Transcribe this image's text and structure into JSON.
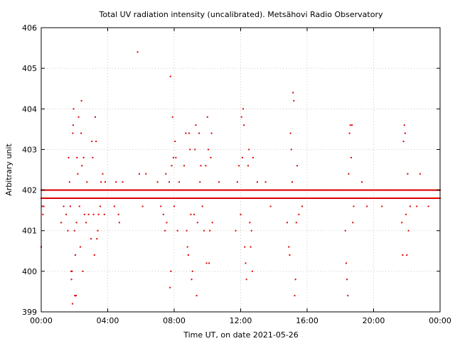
{
  "chart_data": {
    "type": "scatter",
    "title": "Total UV radiation intensity (uncalibrated). Metsähovi Radio Observatory",
    "xlabel": "Time UT, on date 2021-05-26",
    "ylabel": "Arbitrary unit",
    "x_unit": "hours UT",
    "xlim": [
      0,
      24
    ],
    "ylim": [
      399,
      406
    ],
    "grid": true,
    "point_color": "#e00000",
    "x_ticks": [
      {
        "value": 0,
        "label": "00:00"
      },
      {
        "value": 4,
        "label": "04:00"
      },
      {
        "value": 8,
        "label": "08:00"
      },
      {
        "value": 12,
        "label": "12:00"
      },
      {
        "value": 16,
        "label": "16:00"
      },
      {
        "value": 20,
        "label": "20:00"
      },
      {
        "value": 24,
        "label": "00:00"
      }
    ],
    "y_ticks": [
      {
        "value": 399,
        "label": "399"
      },
      {
        "value": 400,
        "label": "400"
      },
      {
        "value": 401,
        "label": "401"
      },
      {
        "value": 402,
        "label": "402"
      },
      {
        "value": 403,
        "label": "403"
      },
      {
        "value": 404,
        "label": "404"
      },
      {
        "value": 405,
        "label": "405"
      },
      {
        "value": 406,
        "label": "406"
      }
    ],
    "baseline_bands": [
      {
        "from": 0.0,
        "to": 24.0,
        "value": 402.0
      },
      {
        "from": 0.0,
        "to": 24.0,
        "value": 401.8
      }
    ],
    "points": [
      [
        0.0,
        400.6
      ],
      [
        0.05,
        401.6
      ],
      [
        0.1,
        401.4
      ],
      [
        0.15,
        401.6
      ],
      [
        1.2,
        401.2
      ],
      [
        1.35,
        401.6
      ],
      [
        1.5,
        401.4
      ],
      [
        1.6,
        401.0
      ],
      [
        1.65,
        402.8
      ],
      [
        1.7,
        402.2
      ],
      [
        1.75,
        401.6
      ],
      [
        1.8,
        400.0
      ],
      [
        1.82,
        399.8
      ],
      [
        1.85,
        400.0
      ],
      [
        1.88,
        399.2
      ],
      [
        1.9,
        403.4
      ],
      [
        1.92,
        403.6
      ],
      [
        1.95,
        404.0
      ],
      [
        2.0,
        401.0
      ],
      [
        2.02,
        399.4
      ],
      [
        2.05,
        400.4
      ],
      [
        2.1,
        399.4
      ],
      [
        2.12,
        401.2
      ],
      [
        2.15,
        402.8
      ],
      [
        2.2,
        402.4
      ],
      [
        2.25,
        403.8
      ],
      [
        2.3,
        401.6
      ],
      [
        2.35,
        400.6
      ],
      [
        2.4,
        403.4
      ],
      [
        2.42,
        404.2
      ],
      [
        2.45,
        402.6
      ],
      [
        2.5,
        400.0
      ],
      [
        2.55,
        402.8
      ],
      [
        2.6,
        401.4
      ],
      [
        2.7,
        401.2
      ],
      [
        2.75,
        402.2
      ],
      [
        2.85,
        401.4
      ],
      [
        2.95,
        402.0
      ],
      [
        3.0,
        400.8
      ],
      [
        3.05,
        403.2
      ],
      [
        3.1,
        402.8
      ],
      [
        3.15,
        401.4
      ],
      [
        3.2,
        400.4
      ],
      [
        3.25,
        403.8
      ],
      [
        3.3,
        403.2
      ],
      [
        3.35,
        400.8
      ],
      [
        3.4,
        401.0
      ],
      [
        3.45,
        401.4
      ],
      [
        3.5,
        402.0
      ],
      [
        3.55,
        401.6
      ],
      [
        3.6,
        402.2
      ],
      [
        3.7,
        402.4
      ],
      [
        3.8,
        401.4
      ],
      [
        3.85,
        402.2
      ],
      [
        4.0,
        402.0
      ],
      [
        4.1,
        401.8
      ],
      [
        4.2,
        401.8
      ],
      [
        4.4,
        401.6
      ],
      [
        4.5,
        402.2
      ],
      [
        4.65,
        401.4
      ],
      [
        4.7,
        401.2
      ],
      [
        4.9,
        402.2
      ],
      [
        5.1,
        402.0
      ],
      [
        5.4,
        401.8
      ],
      [
        5.8,
        405.4
      ],
      [
        5.9,
        402.4
      ],
      [
        6.1,
        401.6
      ],
      [
        6.3,
        402.4
      ],
      [
        6.5,
        401.8
      ],
      [
        6.8,
        401.8
      ],
      [
        7.0,
        402.2
      ],
      [
        7.2,
        401.6
      ],
      [
        7.35,
        401.4
      ],
      [
        7.45,
        401.0
      ],
      [
        7.5,
        402.4
      ],
      [
        7.55,
        401.2
      ],
      [
        7.6,
        402.0
      ],
      [
        7.7,
        402.2
      ],
      [
        7.75,
        399.6
      ],
      [
        7.78,
        404.8
      ],
      [
        7.8,
        400.0
      ],
      [
        7.85,
        402.6
      ],
      [
        7.9,
        403.8
      ],
      [
        7.95,
        402.8
      ],
      [
        8.0,
        401.6
      ],
      [
        8.05,
        403.2
      ],
      [
        8.1,
        402.8
      ],
      [
        8.2,
        401.0
      ],
      [
        8.3,
        402.2
      ],
      [
        8.4,
        402.0
      ],
      [
        8.5,
        401.8
      ],
      [
        8.6,
        402.6
      ],
      [
        8.7,
        403.4
      ],
      [
        8.75,
        401.0
      ],
      [
        8.8,
        400.6
      ],
      [
        8.85,
        400.4
      ],
      [
        8.9,
        403.4
      ],
      [
        8.95,
        403.0
      ],
      [
        9.0,
        401.4
      ],
      [
        9.05,
        399.8
      ],
      [
        9.1,
        400.0
      ],
      [
        9.2,
        401.4
      ],
      [
        9.25,
        403.0
      ],
      [
        9.3,
        403.6
      ],
      [
        9.35,
        399.4
      ],
      [
        9.4,
        401.2
      ],
      [
        9.45,
        401.8
      ],
      [
        9.5,
        403.4
      ],
      [
        9.55,
        402.2
      ],
      [
        9.6,
        402.6
      ],
      [
        9.7,
        401.6
      ],
      [
        9.8,
        401.0
      ],
      [
        9.9,
        402.6
      ],
      [
        9.95,
        400.2
      ],
      [
        10.0,
        403.8
      ],
      [
        10.05,
        403.0
      ],
      [
        10.1,
        400.2
      ],
      [
        10.15,
        401.0
      ],
      [
        10.2,
        402.8
      ],
      [
        10.25,
        403.4
      ],
      [
        10.3,
        401.2
      ],
      [
        10.5,
        402.0
      ],
      [
        10.7,
        402.2
      ],
      [
        11.0,
        401.8
      ],
      [
        11.3,
        402.0
      ],
      [
        11.6,
        401.8
      ],
      [
        11.7,
        401.0
      ],
      [
        11.8,
        402.2
      ],
      [
        11.9,
        402.6
      ],
      [
        12.0,
        401.4
      ],
      [
        12.05,
        403.8
      ],
      [
        12.1,
        402.8
      ],
      [
        12.15,
        404.0
      ],
      [
        12.2,
        403.6
      ],
      [
        12.25,
        400.6
      ],
      [
        12.3,
        400.2
      ],
      [
        12.35,
        399.8
      ],
      [
        12.4,
        401.8
      ],
      [
        12.45,
        402.6
      ],
      [
        12.5,
        403.0
      ],
      [
        12.55,
        401.2
      ],
      [
        12.6,
        400.6
      ],
      [
        12.65,
        401.0
      ],
      [
        12.7,
        400.0
      ],
      [
        12.75,
        402.8
      ],
      [
        12.8,
        402.0
      ],
      [
        13.0,
        402.2
      ],
      [
        13.2,
        401.8
      ],
      [
        13.5,
        402.2
      ],
      [
        13.8,
        401.6
      ],
      [
        14.0,
        402.0
      ],
      [
        14.3,
        401.8
      ],
      [
        14.6,
        402.0
      ],
      [
        14.8,
        401.2
      ],
      [
        14.9,
        400.6
      ],
      [
        14.95,
        400.4
      ],
      [
        15.0,
        403.4
      ],
      [
        15.05,
        403.0
      ],
      [
        15.1,
        402.2
      ],
      [
        15.15,
        404.4
      ],
      [
        15.2,
        404.2
      ],
      [
        15.25,
        399.4
      ],
      [
        15.3,
        399.8
      ],
      [
        15.35,
        401.2
      ],
      [
        15.4,
        402.6
      ],
      [
        15.5,
        401.4
      ],
      [
        15.7,
        401.6
      ],
      [
        16.0,
        402.0
      ],
      [
        16.5,
        401.8
      ],
      [
        17.0,
        402.0
      ],
      [
        17.5,
        401.8
      ],
      [
        18.0,
        402.0
      ],
      [
        18.3,
        401.0
      ],
      [
        18.35,
        400.2
      ],
      [
        18.4,
        399.8
      ],
      [
        18.45,
        399.4
      ],
      [
        18.5,
        402.4
      ],
      [
        18.55,
        403.4
      ],
      [
        18.6,
        403.6
      ],
      [
        18.65,
        402.8
      ],
      [
        18.7,
        403.6
      ],
      [
        18.75,
        401.2
      ],
      [
        18.8,
        401.6
      ],
      [
        19.0,
        401.8
      ],
      [
        19.3,
        402.2
      ],
      [
        19.6,
        401.6
      ],
      [
        20.0,
        401.8
      ],
      [
        20.5,
        401.6
      ],
      [
        21.0,
        402.0
      ],
      [
        21.5,
        401.8
      ],
      [
        21.7,
        401.2
      ],
      [
        21.75,
        400.4
      ],
      [
        21.8,
        403.2
      ],
      [
        21.85,
        403.6
      ],
      [
        21.9,
        403.4
      ],
      [
        21.95,
        401.4
      ],
      [
        22.0,
        400.4
      ],
      [
        22.05,
        402.4
      ],
      [
        22.1,
        401.0
      ],
      [
        22.2,
        401.6
      ],
      [
        22.4,
        402.0
      ],
      [
        22.6,
        401.6
      ],
      [
        22.8,
        402.4
      ],
      [
        23.0,
        401.8
      ],
      [
        23.3,
        401.6
      ],
      [
        23.6,
        402.0
      ],
      [
        23.8,
        401.8
      ],
      [
        23.95,
        402.0
      ]
    ]
  }
}
